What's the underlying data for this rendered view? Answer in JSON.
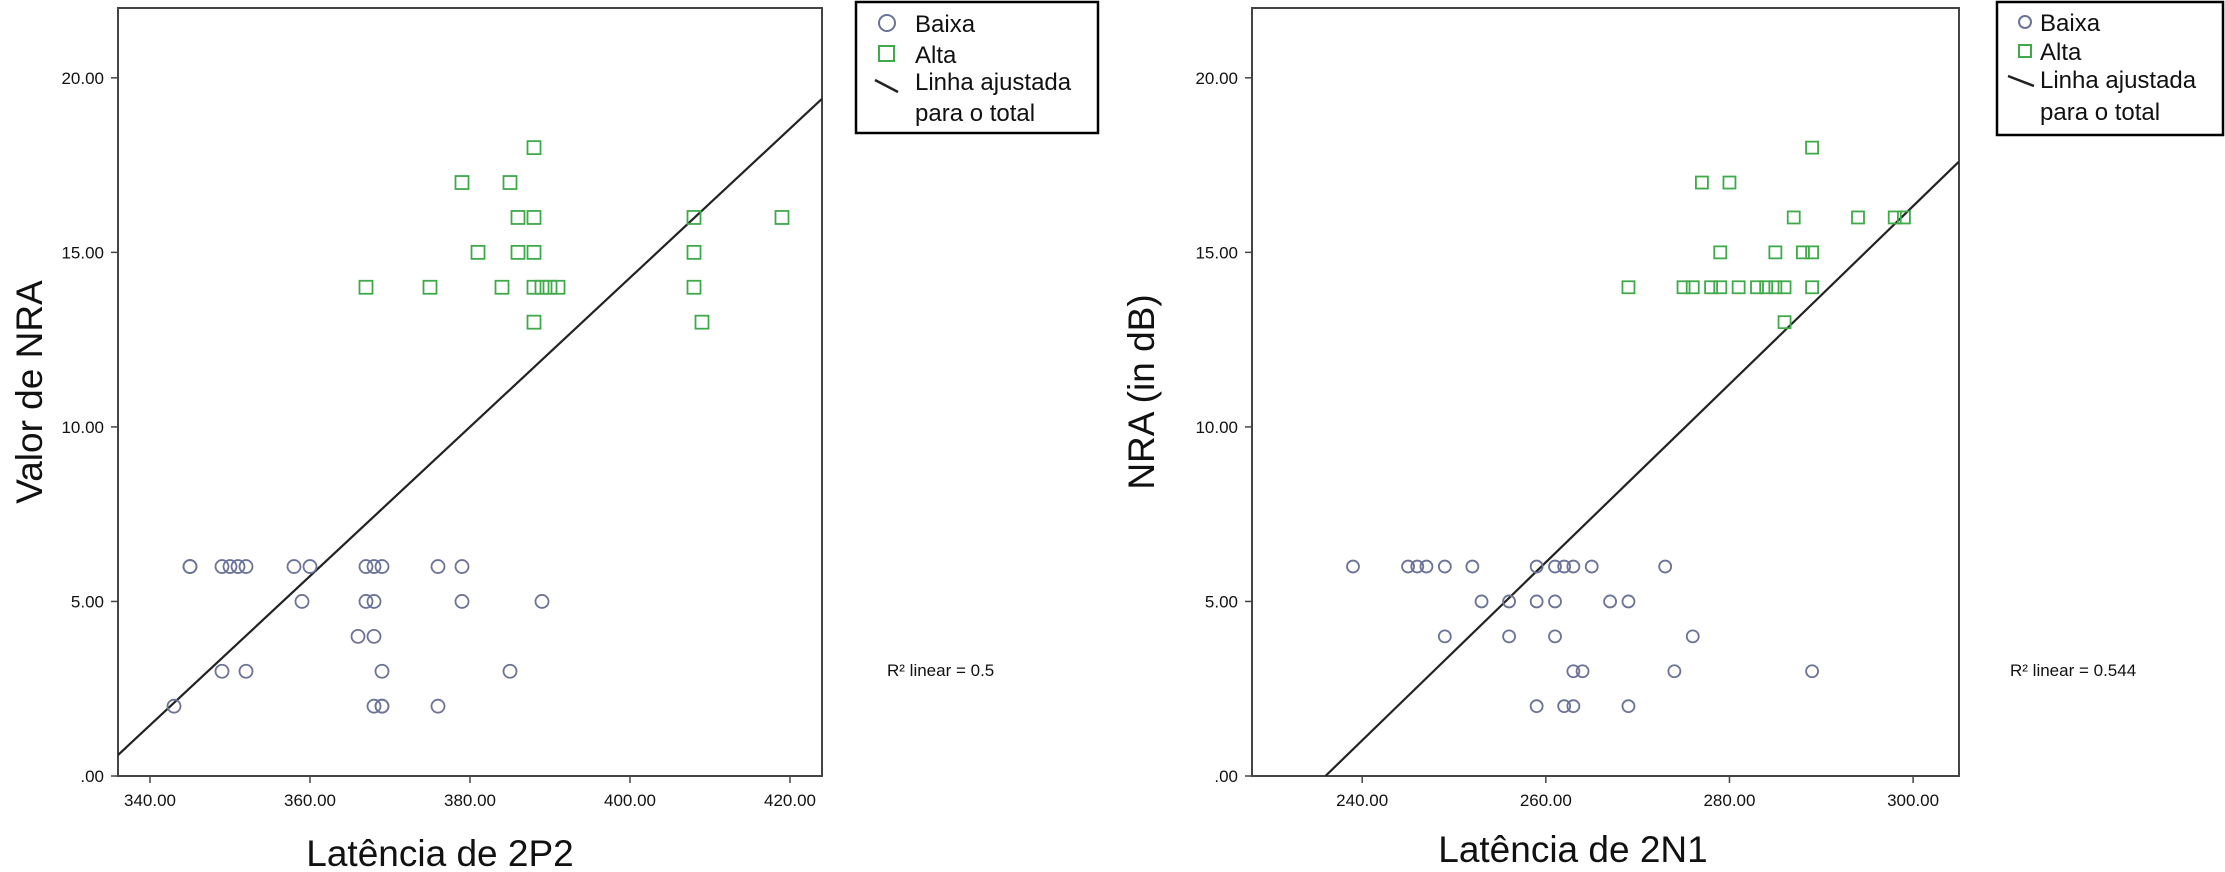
{
  "legend": {
    "low_label": "Baixa",
    "high_label": "Alta",
    "fit_label_line1": "Linha ajustada",
    "fit_label_line2": "para o total"
  },
  "colors": {
    "low": "#6b7396",
    "high": "#3faa4a",
    "fit": "#222222",
    "frame": "#444444"
  },
  "chart_data": [
    {
      "type": "scatter",
      "title": "",
      "xlabel": "Latência de 2P2",
      "ylabel": "Valor de NRA",
      "xlim": [
        336,
        424
      ],
      "ylim": [
        0,
        22
      ],
      "x_ticks": [
        340,
        360,
        380,
        400,
        420
      ],
      "y_ticks": [
        0,
        5,
        10,
        15,
        20
      ],
      "x_tick_labels": [
        "340.00",
        "360.00",
        "380.00",
        "400.00",
        "420.00"
      ],
      "y_tick_labels": [
        ".00",
        "5.00",
        "10.00",
        "15.00",
        "20.00"
      ],
      "r2_label": "R² linear = 0.5",
      "fit_line": {
        "x": [
          336,
          424
        ],
        "y": [
          0.6,
          19.4
        ]
      },
      "series": [
        {
          "name": "Baixa",
          "points": [
            [
              343,
              2
            ],
            [
              345,
              6
            ],
            [
              345,
              6
            ],
            [
              349,
              6
            ],
            [
              349,
              3
            ],
            [
              350,
              6
            ],
            [
              351,
              6
            ],
            [
              352,
              6
            ],
            [
              352,
              3
            ],
            [
              358,
              6
            ],
            [
              359,
              5
            ],
            [
              360,
              6
            ],
            [
              366,
              4
            ],
            [
              367,
              6
            ],
            [
              367,
              5
            ],
            [
              368,
              6
            ],
            [
              368,
              5
            ],
            [
              368,
              4
            ],
            [
              368,
              2
            ],
            [
              369,
              6
            ],
            [
              369,
              3
            ],
            [
              369,
              2
            ],
            [
              369,
              2
            ],
            [
              376,
              6
            ],
            [
              376,
              2
            ],
            [
              379,
              6
            ],
            [
              379,
              5
            ],
            [
              385,
              3
            ],
            [
              389,
              5
            ]
          ]
        },
        {
          "name": "Alta",
          "points": [
            [
              367,
              14
            ],
            [
              375,
              14
            ],
            [
              379,
              17
            ],
            [
              381,
              15
            ],
            [
              384,
              14
            ],
            [
              385,
              17
            ],
            [
              386,
              16
            ],
            [
              386,
              15
            ],
            [
              388,
              18
            ],
            [
              388,
              16
            ],
            [
              388,
              15
            ],
            [
              388,
              14
            ],
            [
              388,
              13
            ],
            [
              389,
              14
            ],
            [
              390,
              14
            ],
            [
              391,
              14
            ],
            [
              408,
              16
            ],
            [
              408,
              15
            ],
            [
              408,
              14
            ],
            [
              409,
              13
            ],
            [
              419,
              16
            ]
          ]
        }
      ]
    },
    {
      "type": "scatter",
      "title": "",
      "xlabel": "Latência de 2N1",
      "ylabel": "NRA (in dB)",
      "xlim": [
        228,
        305
      ],
      "ylim": [
        0,
        22
      ],
      "x_ticks": [
        240,
        260,
        280,
        300
      ],
      "y_ticks": [
        0,
        5,
        10,
        15,
        20
      ],
      "x_tick_labels": [
        "240.00",
        "260.00",
        "280.00",
        "300.00"
      ],
      "y_tick_labels": [
        ".00",
        "5.00",
        "10.00",
        "15.00",
        "20.00"
      ],
      "r2_label": "R² linear = 0.544",
      "fit_line": {
        "x": [
          236,
          305
        ],
        "y": [
          0,
          17.6
        ]
      },
      "series": [
        {
          "name": "Baixa",
          "points": [
            [
              239,
              6
            ],
            [
              245,
              6
            ],
            [
              246,
              6
            ],
            [
              247,
              6
            ],
            [
              249,
              6
            ],
            [
              249,
              4
            ],
            [
              252,
              6
            ],
            [
              253,
              5
            ],
            [
              256,
              5
            ],
            [
              256,
              4
            ],
            [
              259,
              6
            ],
            [
              259,
              5
            ],
            [
              259,
              2
            ],
            [
              261,
              6
            ],
            [
              261,
              5
            ],
            [
              261,
              4
            ],
            [
              262,
              6
            ],
            [
              262,
              2
            ],
            [
              263,
              6
            ],
            [
              263,
              3
            ],
            [
              263,
              2
            ],
            [
              264,
              3
            ],
            [
              265,
              6
            ],
            [
              267,
              5
            ],
            [
              269,
              5
            ],
            [
              269,
              2
            ],
            [
              273,
              6
            ],
            [
              274,
              3
            ],
            [
              276,
              4
            ],
            [
              289,
              3
            ]
          ]
        },
        {
          "name": "Alta",
          "points": [
            [
              269,
              14
            ],
            [
              275,
              14
            ],
            [
              276,
              14
            ],
            [
              277,
              17
            ],
            [
              278,
              14
            ],
            [
              279,
              15
            ],
            [
              279,
              14
            ],
            [
              280,
              17
            ],
            [
              281,
              14
            ],
            [
              283,
              14
            ],
            [
              284,
              14
            ],
            [
              285,
              15
            ],
            [
              285,
              14
            ],
            [
              286,
              14
            ],
            [
              286,
              13
            ],
            [
              287,
              16
            ],
            [
              288,
              15
            ],
            [
              289,
              18
            ],
            [
              289,
              15
            ],
            [
              289,
              14
            ],
            [
              294,
              16
            ],
            [
              298,
              16
            ],
            [
              299,
              16
            ]
          ]
        }
      ]
    }
  ]
}
